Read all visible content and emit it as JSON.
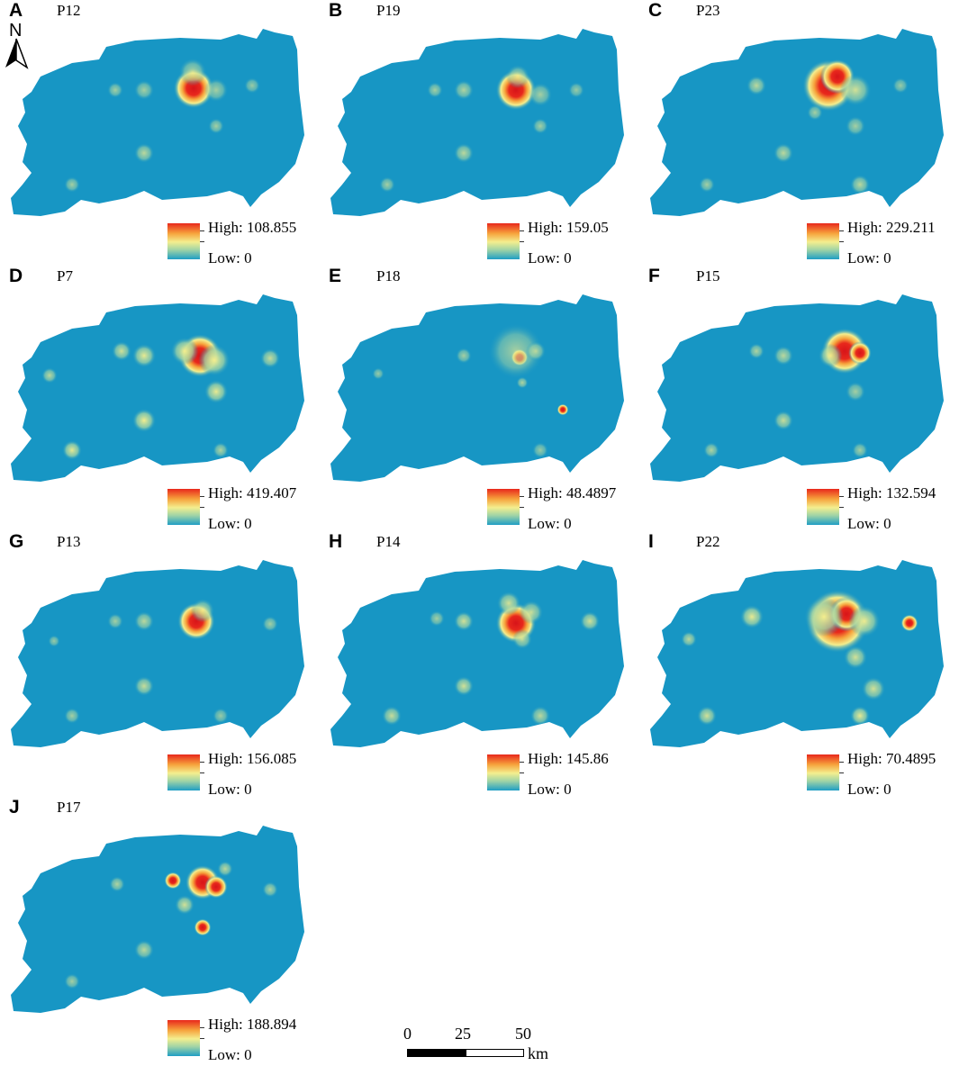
{
  "colors": {
    "map_fill": "#1796c4",
    "high": "#e8281c",
    "mid": "#f4ee8e",
    "low": "#1f9ec5"
  },
  "north_arrow": {
    "label": "N",
    "icon": "north-arrow-icon"
  },
  "panels": [
    {
      "label": "A",
      "name": "P12",
      "legend_high": "High: 108.855",
      "legend_low": "Low: 0"
    },
    {
      "label": "B",
      "name": "P19",
      "legend_high": "High: 159.05",
      "legend_low": "Low: 0"
    },
    {
      "label": "C",
      "name": "P23",
      "legend_high": "High: 229.211",
      "legend_low": "Low: 0"
    },
    {
      "label": "D",
      "name": "P7",
      "legend_high": "High: 419.407",
      "legend_low": "Low: 0"
    },
    {
      "label": "E",
      "name": "P18",
      "legend_high": "High: 48.4897",
      "legend_low": "Low: 0"
    },
    {
      "label": "F",
      "name": "P15",
      "legend_high": "High: 132.594",
      "legend_low": "Low: 0"
    },
    {
      "label": "G",
      "name": "P13",
      "legend_high": "High: 156.085",
      "legend_low": "Low: 0"
    },
    {
      "label": "H",
      "name": "P14",
      "legend_high": "High: 145.86",
      "legend_low": "Low: 0"
    },
    {
      "label": "I",
      "name": "P22",
      "legend_high": "High: 70.4895",
      "legend_low": "Low: 0"
    },
    {
      "label": "J",
      "name": "P17",
      "legend_high": "High: 188.894",
      "legend_low": "Low: 0"
    }
  ],
  "scale_bar": {
    "ticks": [
      "0",
      "25",
      "50"
    ],
    "unit": "km"
  }
}
